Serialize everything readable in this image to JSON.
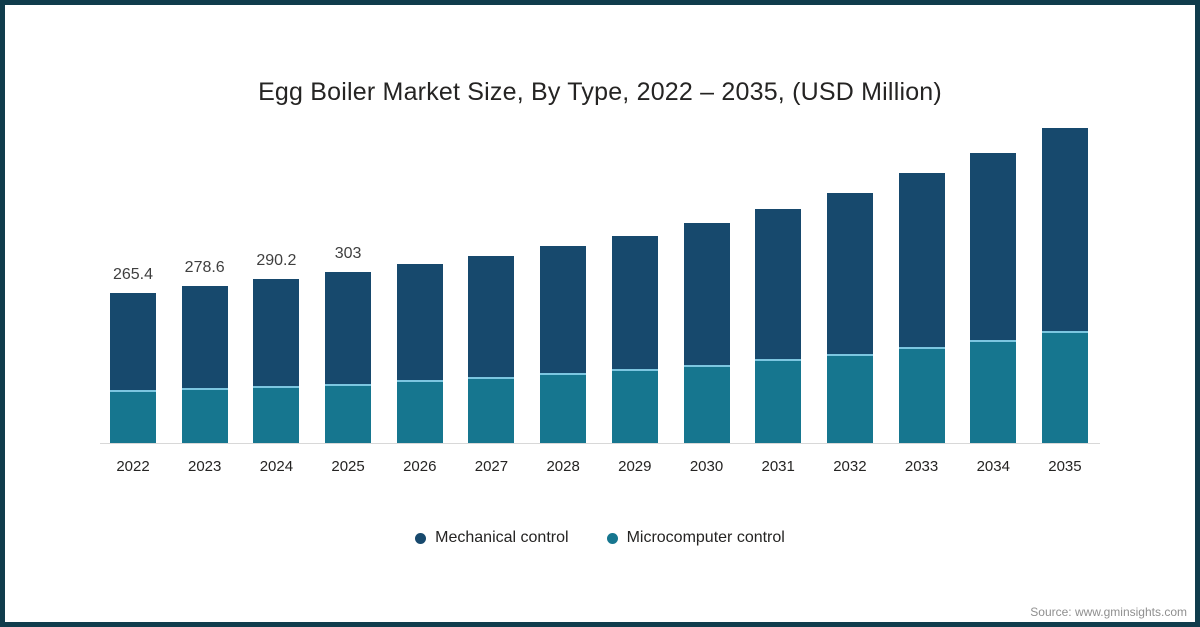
{
  "title": "Egg Boiler Market Size, By Type, 2022 – 2035, (USD Million)",
  "source": "Source: www.gminsights.com",
  "colors": {
    "frame_border": "#103c4c",
    "mechanical": "#17496d",
    "microcomputer": "#16768f",
    "segment_divider": "#7cc6e0",
    "axis_line": "#d8d8d8"
  },
  "chart_data": {
    "type": "bar",
    "stacked": true,
    "title": "Egg Boiler Market Size, By Type, 2022 – 2035, (USD Million)",
    "unit": "USD Million",
    "categories": [
      "2022",
      "2023",
      "2024",
      "2025",
      "2026",
      "2027",
      "2028",
      "2029",
      "2030",
      "2031",
      "2032",
      "2033",
      "2034",
      "2035"
    ],
    "series": [
      {
        "name": "Mechanical control",
        "color": "#17496d",
        "values": [
          172.4,
          180.6,
          189.2,
          199,
          205,
          214,
          224,
          235,
          252,
          265,
          285,
          308,
          331,
          360
        ]
      },
      {
        "name": "Microcomputer control",
        "color": "#16768f",
        "values": [
          93,
          98,
          101,
          104,
          111,
          117,
          124,
          131,
          138,
          149,
          157,
          170,
          182,
          198
        ]
      }
    ],
    "totals": [
      265.4,
      278.6,
      290.2,
      303,
      316,
      331,
      348,
      366,
      390,
      414,
      442,
      478,
      513,
      558
    ],
    "data_labels": [
      "265.4",
      "278.6",
      "290.2",
      "303",
      "",
      "",
      "",
      "",
      "",
      "",
      "",
      "",
      "",
      ""
    ],
    "ylim": [
      0,
      600
    ],
    "grid": false,
    "legend_position": "bottom"
  }
}
